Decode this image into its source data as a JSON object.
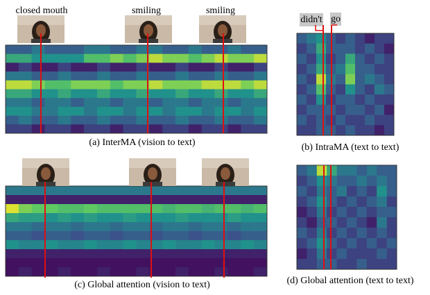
{
  "colormap": [
    "#440154",
    "#3b528b",
    "#21918c",
    "#5ec962",
    "#fde725"
  ],
  "panels": [
    {
      "caption": "(a) InterMA (vision to text)",
      "labels": [
        "closed mouth",
        "smiling",
        "smiling"
      ],
      "matrix": [
        [
          0.3,
          0.3,
          0.4,
          0.3,
          0.3,
          0.3,
          0.4,
          0.4,
          0.3,
          0.3,
          0.4,
          0.4,
          0.3,
          0.3,
          0.4,
          0.3,
          0.3,
          0.4,
          0.3,
          0.3
        ],
        [
          0.6,
          0.6,
          0.5,
          0.5,
          0.5,
          0.5,
          0.7,
          0.7,
          0.8,
          0.7,
          0.8,
          0.9,
          0.8,
          0.8,
          0.7,
          0.8,
          0.9,
          0.8,
          0.8,
          0.9
        ],
        [
          0.1,
          0.2,
          0.1,
          0.1,
          0.2,
          0.1,
          0.1,
          0.2,
          0.1,
          0.1,
          0.2,
          0.1,
          0.1,
          0.2,
          0.1,
          0.1,
          0.2,
          0.1,
          0.1,
          0.2
        ],
        [
          0.4,
          0.4,
          0.3,
          0.3,
          0.4,
          0.3,
          0.3,
          0.4,
          0.3,
          0.3,
          0.4,
          0.3,
          0.3,
          0.4,
          0.3,
          0.3,
          0.4,
          0.3,
          0.3,
          0.4
        ],
        [
          0.9,
          0.9,
          0.8,
          0.7,
          0.7,
          0.8,
          0.8,
          0.8,
          0.7,
          0.8,
          0.8,
          0.9,
          0.8,
          0.8,
          0.8,
          0.9,
          0.9,
          0.9,
          0.8,
          0.9
        ],
        [
          0.6,
          0.6,
          0.5,
          0.5,
          0.6,
          0.5,
          0.5,
          0.6,
          0.5,
          0.5,
          0.6,
          0.5,
          0.5,
          0.6,
          0.5,
          0.5,
          0.6,
          0.5,
          0.5,
          0.6
        ],
        [
          0.4,
          0.4,
          0.3,
          0.4,
          0.4,
          0.3,
          0.4,
          0.4,
          0.3,
          0.4,
          0.4,
          0.3,
          0.4,
          0.4,
          0.3,
          0.4,
          0.4,
          0.3,
          0.4,
          0.4
        ],
        [
          0.5,
          0.5,
          0.4,
          0.4,
          0.5,
          0.5,
          0.4,
          0.5,
          0.5,
          0.4,
          0.5,
          0.5,
          0.4,
          0.5,
          0.5,
          0.4,
          0.5,
          0.5,
          0.4,
          0.5
        ],
        [
          0.3,
          0.4,
          0.3,
          0.3,
          0.4,
          0.3,
          0.3,
          0.4,
          0.3,
          0.3,
          0.4,
          0.3,
          0.3,
          0.4,
          0.3,
          0.3,
          0.4,
          0.3,
          0.3,
          0.4
        ],
        [
          0.2,
          0.2,
          0.1,
          0.2,
          0.2,
          0.1,
          0.2,
          0.2,
          0.1,
          0.2,
          0.2,
          0.1,
          0.2,
          0.2,
          0.1,
          0.2,
          0.2,
          0.1,
          0.2,
          0.2
        ]
      ]
    },
    {
      "caption": "(b) IntraMA (text to text)",
      "labels": [
        "didn't",
        "go"
      ],
      "matrix": [
        [
          0.3,
          0.4,
          0.5,
          0.3,
          0.2,
          0.3,
          0.2,
          0.1,
          0.2,
          0.2
        ],
        [
          0.2,
          0.3,
          0.6,
          0.3,
          0.3,
          0.3,
          0.2,
          0.3,
          0.2,
          0.1
        ],
        [
          0.3,
          0.2,
          0.5,
          0.2,
          0.3,
          0.6,
          0.3,
          0.2,
          0.3,
          0.2
        ],
        [
          0.2,
          0.3,
          0.6,
          0.3,
          0.4,
          0.7,
          0.3,
          0.3,
          0.2,
          0.2
        ],
        [
          0.3,
          0.2,
          0.9,
          0.4,
          0.3,
          0.8,
          0.3,
          0.4,
          0.3,
          0.2
        ],
        [
          0.2,
          0.3,
          0.7,
          0.3,
          0.2,
          0.5,
          0.3,
          0.2,
          0.4,
          0.3
        ],
        [
          0.3,
          0.2,
          0.5,
          0.2,
          0.3,
          0.3,
          0.2,
          0.3,
          0.2,
          0.2
        ],
        [
          0.2,
          0.3,
          0.3,
          0.3,
          0.2,
          0.3,
          0.3,
          0.2,
          0.3,
          0.1
        ],
        [
          0.3,
          0.2,
          0.3,
          0.2,
          0.3,
          0.2,
          0.2,
          0.3,
          0.2,
          0.2
        ],
        [
          0.2,
          0.2,
          0.3,
          0.3,
          0.2,
          0.3,
          0.2,
          0.2,
          0.1,
          0.2
        ]
      ]
    },
    {
      "caption": "(c) Global attention (vision to text)",
      "labels": [],
      "matrix": [
        [
          0.4,
          0.4,
          0.4,
          0.4,
          0.4,
          0.4,
          0.4,
          0.4,
          0.4,
          0.4,
          0.4,
          0.4,
          0.4,
          0.4,
          0.4,
          0.4,
          0.4,
          0.4,
          0.4,
          0.4
        ],
        [
          0.1,
          0.1,
          0.1,
          0.1,
          0.1,
          0.1,
          0.1,
          0.1,
          0.1,
          0.1,
          0.1,
          0.1,
          0.1,
          0.1,
          0.1,
          0.1,
          0.1,
          0.1,
          0.1,
          0.1
        ],
        [
          0.95,
          0.8,
          0.75,
          0.75,
          0.7,
          0.7,
          0.75,
          0.7,
          0.7,
          0.7,
          0.7,
          0.7,
          0.65,
          0.7,
          0.7,
          0.65,
          0.7,
          0.7,
          0.65,
          0.7
        ],
        [
          0.6,
          0.55,
          0.55,
          0.5,
          0.55,
          0.5,
          0.55,
          0.5,
          0.5,
          0.55,
          0.5,
          0.5,
          0.5,
          0.55,
          0.5,
          0.5,
          0.5,
          0.55,
          0.5,
          0.5
        ],
        [
          0.4,
          0.4,
          0.35,
          0.4,
          0.4,
          0.35,
          0.4,
          0.4,
          0.35,
          0.4,
          0.4,
          0.35,
          0.4,
          0.4,
          0.35,
          0.4,
          0.4,
          0.35,
          0.4,
          0.4
        ],
        [
          0.3,
          0.3,
          0.25,
          0.3,
          0.3,
          0.25,
          0.3,
          0.3,
          0.25,
          0.3,
          0.3,
          0.25,
          0.3,
          0.3,
          0.25,
          0.3,
          0.3,
          0.25,
          0.3,
          0.3
        ],
        [
          0.5,
          0.45,
          0.45,
          0.5,
          0.45,
          0.45,
          0.5,
          0.45,
          0.45,
          0.5,
          0.45,
          0.45,
          0.5,
          0.45,
          0.45,
          0.5,
          0.45,
          0.45,
          0.5,
          0.45
        ],
        [
          0.1,
          0.1,
          0.1,
          0.1,
          0.1,
          0.1,
          0.1,
          0.1,
          0.1,
          0.1,
          0.1,
          0.1,
          0.1,
          0.1,
          0.1,
          0.1,
          0.1,
          0.1,
          0.1,
          0.1
        ],
        [
          0.05,
          0.05,
          0.05,
          0.05,
          0.05,
          0.05,
          0.05,
          0.05,
          0.05,
          0.05,
          0.05,
          0.05,
          0.05,
          0.05,
          0.05,
          0.05,
          0.05,
          0.05,
          0.05,
          0.05
        ],
        [
          0.05,
          0.1,
          0.05,
          0.05,
          0.1,
          0.05,
          0.05,
          0.1,
          0.05,
          0.05,
          0.1,
          0.05,
          0.05,
          0.1,
          0.05,
          0.05,
          0.1,
          0.05,
          0.05,
          0.1
        ]
      ]
    },
    {
      "caption": "(d) Global attention (text to text)",
      "labels": [],
      "matrix": [
        [
          0.3,
          0.4,
          0.9,
          0.6,
          0.4,
          0.4,
          0.3,
          0.4,
          0.3,
          0.3
        ],
        [
          0.2,
          0.3,
          0.5,
          0.4,
          0.3,
          0.3,
          0.4,
          0.3,
          0.4,
          0.3
        ],
        [
          0.3,
          0.2,
          0.4,
          0.3,
          0.4,
          0.2,
          0.3,
          0.2,
          0.5,
          0.3
        ],
        [
          0.2,
          0.3,
          0.5,
          0.3,
          0.2,
          0.3,
          0.2,
          0.3,
          0.4,
          0.2
        ],
        [
          0.1,
          0.2,
          0.4,
          0.2,
          0.3,
          0.2,
          0.3,
          0.2,
          0.3,
          0.3
        ],
        [
          0.2,
          0.1,
          0.3,
          0.3,
          0.2,
          0.3,
          0.2,
          0.1,
          0.4,
          0.2
        ],
        [
          0.3,
          0.2,
          0.4,
          0.2,
          0.3,
          0.2,
          0.3,
          0.2,
          0.3,
          0.2
        ],
        [
          0.2,
          0.3,
          0.5,
          0.3,
          0.2,
          0.3,
          0.2,
          0.3,
          0.2,
          0.3
        ],
        [
          0.1,
          0.2,
          0.4,
          0.2,
          0.3,
          0.2,
          0.2,
          0.2,
          0.3,
          0.2
        ],
        [
          0.2,
          0.2,
          0.3,
          0.3,
          0.2,
          0.2,
          0.3,
          0.2,
          0.2,
          0.2
        ]
      ]
    }
  ]
}
